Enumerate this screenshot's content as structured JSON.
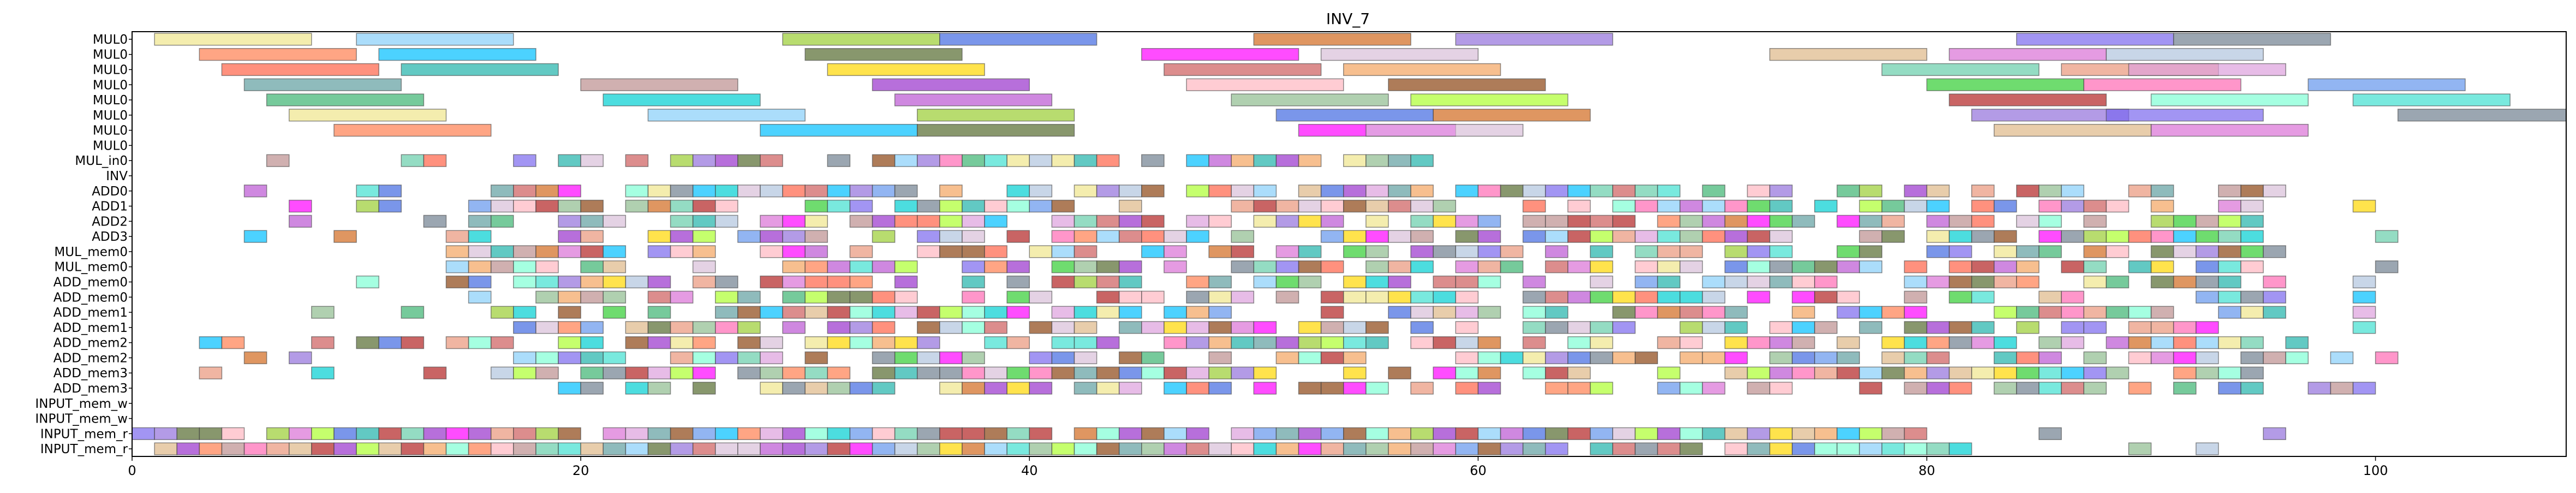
{
  "chart_data": {
    "type": "gantt",
    "title": "INV_7",
    "xlabel": "",
    "ylabel": "",
    "xlim": [
      0,
      108.5
    ],
    "xticks": [
      0,
      20,
      40,
      60,
      80,
      100
    ],
    "grid": false,
    "legend": "none",
    "rows": [
      "MUL0",
      "MUL0",
      "MUL0",
      "MUL0",
      "MUL0",
      "MUL0",
      "MUL0",
      "MUL0",
      "MUL_in0",
      "INV",
      "ADD0",
      "ADD1",
      "ADD2",
      "ADD3",
      "MUL_mem0",
      "MUL_mem0",
      "ADD_mem0",
      "ADD_mem0",
      "ADD_mem1",
      "ADD_mem1",
      "ADD_mem2",
      "ADD_mem2",
      "ADD_mem3",
      "ADD_mem3",
      "INPUT_mem_w",
      "INPUT_mem_w",
      "INPUT_mem_r",
      "INPUT_mem_r"
    ],
    "palette": [
      "#f0e68c",
      "#ffb6c1",
      "#da70d6",
      "#87cefa",
      "#8b4513",
      "#b0c4de",
      "#9acd32",
      "#32cd32",
      "#ff6347",
      "#4169e1",
      "#ff69b4",
      "#20b2aa",
      "#d2691e",
      "#6495ed",
      "#ffd700",
      "#9370db",
      "#3cb371",
      "#cd5c5c",
      "#7b68ee",
      "#00ced1",
      "#f4a460",
      "#708090",
      "#ba55d3",
      "#66cdaa",
      "#ff7f50",
      "#8fbc8f",
      "#e9967a",
      "#00bfff",
      "#adff2f",
      "#dda0dd",
      "#556b2f",
      "#b22222",
      "#5f9ea0",
      "#ff00ff",
      "#7fffd4",
      "#bc8f8f",
      "#d8bfd8",
      "#40e0d0",
      "#9932cc",
      "#deb887"
    ],
    "long_bars": {
      "0": [
        [
          1,
          8
        ],
        [
          10,
          17
        ],
        [
          29,
          36
        ],
        [
          36,
          43
        ],
        [
          50,
          57
        ],
        [
          59,
          66
        ],
        [
          84,
          91
        ],
        [
          91,
          98
        ]
      ],
      "1": [
        [
          3,
          10
        ],
        [
          11,
          18
        ],
        [
          30,
          37
        ],
        [
          45,
          52
        ],
        [
          53,
          60
        ],
        [
          73,
          80
        ],
        [
          81,
          88
        ],
        [
          88,
          95
        ]
      ],
      "2": [
        [
          4,
          11
        ],
        [
          12,
          19
        ],
        [
          31,
          38
        ],
        [
          46,
          53
        ],
        [
          54,
          61
        ],
        [
          78,
          85
        ],
        [
          86,
          93
        ],
        [
          89,
          96
        ]
      ],
      "3": [
        [
          5,
          12
        ],
        [
          20,
          27
        ],
        [
          33,
          40
        ],
        [
          47,
          54
        ],
        [
          56,
          63
        ],
        [
          80,
          87
        ],
        [
          87,
          94
        ],
        [
          97,
          104
        ]
      ],
      "4": [
        [
          6,
          13
        ],
        [
          21,
          28
        ],
        [
          34,
          41
        ],
        [
          49,
          56
        ],
        [
          57,
          64
        ],
        [
          81,
          88
        ],
        [
          90,
          97
        ],
        [
          99,
          106
        ]
      ],
      "5": [
        [
          7,
          14
        ],
        [
          23,
          30
        ],
        [
          35,
          42
        ],
        [
          51,
          58
        ],
        [
          58,
          65
        ],
        [
          82,
          89
        ],
        [
          88,
          95
        ],
        [
          101,
          108.5
        ]
      ],
      "6": [
        [
          9,
          16
        ],
        [
          28,
          35
        ],
        [
          35,
          42
        ],
        [
          52,
          59
        ],
        [
          55,
          62
        ],
        [
          83,
          90
        ],
        [
          90,
          97
        ]
      ],
      "7": [
        [
          0,
          0
        ]
      ]
    },
    "dense_rows": [
      8,
      10,
      11,
      12,
      13,
      14,
      15,
      16,
      17,
      18,
      19,
      20,
      21,
      22,
      23,
      26,
      27
    ],
    "block_width": 1,
    "source_note_hidden": ""
  }
}
